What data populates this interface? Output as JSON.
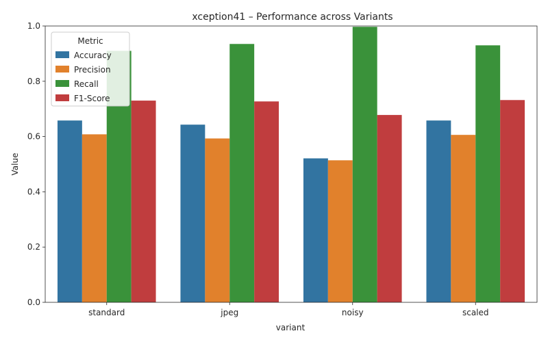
{
  "chart_data": {
    "type": "bar",
    "title": "xception41 – Performance across Variants",
    "xlabel": "variant",
    "ylabel": "Value",
    "ylim": [
      0,
      1.0
    ],
    "yticks": [
      "0.0",
      "0.2",
      "0.4",
      "0.6",
      "0.8",
      "1.0"
    ],
    "categories": [
      "standard",
      "jpeg",
      "noisy",
      "scaled"
    ],
    "legend": {
      "title": "Metric",
      "placement": "top-left"
    },
    "grid": false,
    "series": [
      {
        "name": "Accuracy",
        "color": "#3274a1",
        "values": [
          0.658,
          0.643,
          0.521,
          0.658
        ]
      },
      {
        "name": "Precision",
        "color": "#e1812c",
        "values": [
          0.608,
          0.593,
          0.514,
          0.606
        ]
      },
      {
        "name": "Recall",
        "color": "#3a923a",
        "values": [
          0.91,
          0.935,
          0.997,
          0.93
        ]
      },
      {
        "name": "F1-Score",
        "color": "#c03d3e",
        "values": [
          0.73,
          0.727,
          0.678,
          0.732
        ]
      }
    ]
  }
}
